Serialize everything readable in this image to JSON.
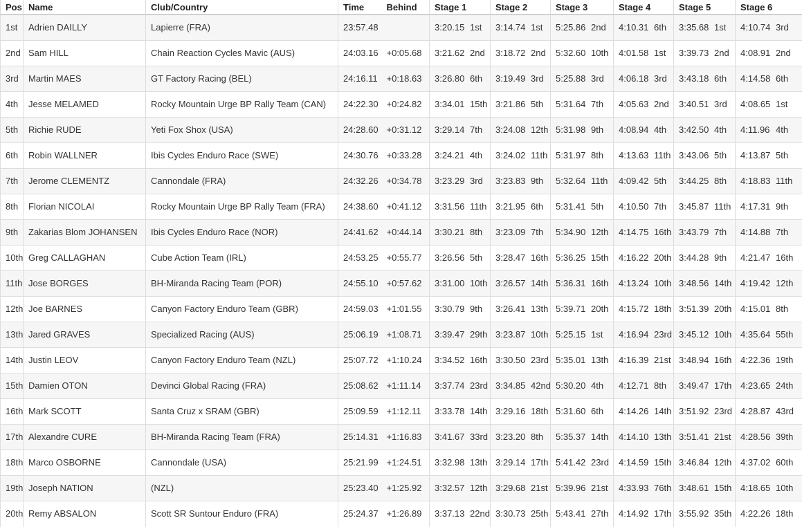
{
  "colors": {
    "text": "#333333",
    "header_text": "#222222",
    "border": "#dddddd",
    "header_border": "#d0d0d0",
    "stripe": "#f6f6f6"
  },
  "table": {
    "columns": [
      "Pos",
      "Name",
      "Club/Country",
      "Time",
      "Behind",
      "Stage 1",
      "Stage 2",
      "Stage 3",
      "Stage 4",
      "Stage 5",
      "Stage 6"
    ],
    "rows": [
      {
        "pos": "1st",
        "name": "Adrien DAILLY",
        "club": "Lapierre (FRA)",
        "time": "23:57.48",
        "behind": "",
        "stages": [
          [
            "3:20.15",
            "1st"
          ],
          [
            "3:14.74",
            "1st"
          ],
          [
            "5:25.86",
            "2nd"
          ],
          [
            "4:10.31",
            "6th"
          ],
          [
            "3:35.68",
            "1st"
          ],
          [
            "4:10.74",
            "3rd"
          ]
        ]
      },
      {
        "pos": "2nd",
        "name": "Sam HILL",
        "club": "Chain Reaction Cycles Mavic (AUS)",
        "time": "24:03.16",
        "behind": "+0:05.68",
        "stages": [
          [
            "3:21.62",
            "2nd"
          ],
          [
            "3:18.72",
            "2nd"
          ],
          [
            "5:32.60",
            "10th"
          ],
          [
            "4:01.58",
            "1st"
          ],
          [
            "3:39.73",
            "2nd"
          ],
          [
            "4:08.91",
            "2nd"
          ]
        ]
      },
      {
        "pos": "3rd",
        "name": "Martin MAES",
        "club": "GT Factory Racing (BEL)",
        "time": "24:16.11",
        "behind": "+0:18.63",
        "stages": [
          [
            "3:26.80",
            "6th"
          ],
          [
            "3:19.49",
            "3rd"
          ],
          [
            "5:25.88",
            "3rd"
          ],
          [
            "4:06.18",
            "3rd"
          ],
          [
            "3:43.18",
            "6th"
          ],
          [
            "4:14.58",
            "6th"
          ]
        ]
      },
      {
        "pos": "4th",
        "name": "Jesse MELAMED",
        "club": "Rocky Mountain Urge BP Rally Team (CAN)",
        "time": "24:22.30",
        "behind": "+0:24.82",
        "stages": [
          [
            "3:34.01",
            "15th"
          ],
          [
            "3:21.86",
            "5th"
          ],
          [
            "5:31.64",
            "7th"
          ],
          [
            "4:05.63",
            "2nd"
          ],
          [
            "3:40.51",
            "3rd"
          ],
          [
            "4:08.65",
            "1st"
          ]
        ]
      },
      {
        "pos": "5th",
        "name": "Richie RUDE",
        "club": "Yeti Fox Shox (USA)",
        "time": "24:28.60",
        "behind": "+0:31.12",
        "stages": [
          [
            "3:29.14",
            "7th"
          ],
          [
            "3:24.08",
            "12th"
          ],
          [
            "5:31.98",
            "9th"
          ],
          [
            "4:08.94",
            "4th"
          ],
          [
            "3:42.50",
            "4th"
          ],
          [
            "4:11.96",
            "4th"
          ]
        ]
      },
      {
        "pos": "6th",
        "name": "Robin WALLNER",
        "club": "Ibis Cycles Enduro Race (SWE)",
        "time": "24:30.76",
        "behind": "+0:33.28",
        "stages": [
          [
            "3:24.21",
            "4th"
          ],
          [
            "3:24.02",
            "11th"
          ],
          [
            "5:31.97",
            "8th"
          ],
          [
            "4:13.63",
            "11th"
          ],
          [
            "3:43.06",
            "5th"
          ],
          [
            "4:13.87",
            "5th"
          ]
        ]
      },
      {
        "pos": "7th",
        "name": "Jerome CLEMENTZ",
        "club": "Cannondale (FRA)",
        "time": "24:32.26",
        "behind": "+0:34.78",
        "stages": [
          [
            "3:23.29",
            "3rd"
          ],
          [
            "3:23.83",
            "9th"
          ],
          [
            "5:32.64",
            "11th"
          ],
          [
            "4:09.42",
            "5th"
          ],
          [
            "3:44.25",
            "8th"
          ],
          [
            "4:18.83",
            "11th"
          ]
        ]
      },
      {
        "pos": "8th",
        "name": "Florian NICOLAI",
        "club": "Rocky Mountain Urge BP Rally Team (FRA)",
        "time": "24:38.60",
        "behind": "+0:41.12",
        "stages": [
          [
            "3:31.56",
            "11th"
          ],
          [
            "3:21.95",
            "6th"
          ],
          [
            "5:31.41",
            "5th"
          ],
          [
            "4:10.50",
            "7th"
          ],
          [
            "3:45.87",
            "11th"
          ],
          [
            "4:17.31",
            "9th"
          ]
        ]
      },
      {
        "pos": "9th",
        "name": "Zakarias Blom JOHANSEN",
        "club": "Ibis Cycles Enduro Race (NOR)",
        "time": "24:41.62",
        "behind": "+0:44.14",
        "stages": [
          [
            "3:30.21",
            "8th"
          ],
          [
            "3:23.09",
            "7th"
          ],
          [
            "5:34.90",
            "12th"
          ],
          [
            "4:14.75",
            "16th"
          ],
          [
            "3:43.79",
            "7th"
          ],
          [
            "4:14.88",
            "7th"
          ]
        ]
      },
      {
        "pos": "10th",
        "name": "Greg CALLAGHAN",
        "club": "Cube Action Team (IRL)",
        "time": "24:53.25",
        "behind": "+0:55.77",
        "stages": [
          [
            "3:26.56",
            "5th"
          ],
          [
            "3:28.47",
            "16th"
          ],
          [
            "5:36.25",
            "15th"
          ],
          [
            "4:16.22",
            "20th"
          ],
          [
            "3:44.28",
            "9th"
          ],
          [
            "4:21.47",
            "16th"
          ]
        ]
      },
      {
        "pos": "11th",
        "name": "Jose BORGES",
        "club": "BH-Miranda Racing Team (POR)",
        "time": "24:55.10",
        "behind": "+0:57.62",
        "stages": [
          [
            "3:31.00",
            "10th"
          ],
          [
            "3:26.57",
            "14th"
          ],
          [
            "5:36.31",
            "16th"
          ],
          [
            "4:13.24",
            "10th"
          ],
          [
            "3:48.56",
            "14th"
          ],
          [
            "4:19.42",
            "12th"
          ]
        ]
      },
      {
        "pos": "12th",
        "name": "Joe BARNES",
        "club": "Canyon Factory Enduro Team (GBR)",
        "time": "24:59.03",
        "behind": "+1:01.55",
        "stages": [
          [
            "3:30.79",
            "9th"
          ],
          [
            "3:26.41",
            "13th"
          ],
          [
            "5:39.71",
            "20th"
          ],
          [
            "4:15.72",
            "18th"
          ],
          [
            "3:51.39",
            "20th"
          ],
          [
            "4:15.01",
            "8th"
          ]
        ]
      },
      {
        "pos": "13th",
        "name": "Jared GRAVES",
        "club": "Specialized Racing (AUS)",
        "time": "25:06.19",
        "behind": "+1:08.71",
        "stages": [
          [
            "3:39.47",
            "29th"
          ],
          [
            "3:23.87",
            "10th"
          ],
          [
            "5:25.15",
            "1st"
          ],
          [
            "4:16.94",
            "23rd"
          ],
          [
            "3:45.12",
            "10th"
          ],
          [
            "4:35.64",
            "55th"
          ]
        ]
      },
      {
        "pos": "14th",
        "name": "Justin LEOV",
        "club": "Canyon Factory Enduro Team (NZL)",
        "time": "25:07.72",
        "behind": "+1:10.24",
        "stages": [
          [
            "3:34.52",
            "16th"
          ],
          [
            "3:30.50",
            "23rd"
          ],
          [
            "5:35.01",
            "13th"
          ],
          [
            "4:16.39",
            "21st"
          ],
          [
            "3:48.94",
            "16th"
          ],
          [
            "4:22.36",
            "19th"
          ]
        ]
      },
      {
        "pos": "15th",
        "name": "Damien OTON",
        "club": "Devinci Global Racing (FRA)",
        "time": "25:08.62",
        "behind": "+1:11.14",
        "stages": [
          [
            "3:37.74",
            "23rd"
          ],
          [
            "3:34.85",
            "42nd"
          ],
          [
            "5:30.20",
            "4th"
          ],
          [
            "4:12.71",
            "8th"
          ],
          [
            "3:49.47",
            "17th"
          ],
          [
            "4:23.65",
            "24th"
          ]
        ]
      },
      {
        "pos": "16th",
        "name": "Mark SCOTT",
        "club": "Santa Cruz x SRAM (GBR)",
        "time": "25:09.59",
        "behind": "+1:12.11",
        "stages": [
          [
            "3:33.78",
            "14th"
          ],
          [
            "3:29.16",
            "18th"
          ],
          [
            "5:31.60",
            "6th"
          ],
          [
            "4:14.26",
            "14th"
          ],
          [
            "3:51.92",
            "23rd"
          ],
          [
            "4:28.87",
            "43rd"
          ]
        ]
      },
      {
        "pos": "17th",
        "name": "Alexandre CURE",
        "club": "BH-Miranda Racing Team (FRA)",
        "time": "25:14.31",
        "behind": "+1:16.83",
        "stages": [
          [
            "3:41.67",
            "33rd"
          ],
          [
            "3:23.20",
            "8th"
          ],
          [
            "5:35.37",
            "14th"
          ],
          [
            "4:14.10",
            "13th"
          ],
          [
            "3:51.41",
            "21st"
          ],
          [
            "4:28.56",
            "39th"
          ]
        ]
      },
      {
        "pos": "18th",
        "name": "Marco OSBORNE",
        "club": "Cannondale (USA)",
        "time": "25:21.99",
        "behind": "+1:24.51",
        "stages": [
          [
            "3:32.98",
            "13th"
          ],
          [
            "3:29.14",
            "17th"
          ],
          [
            "5:41.42",
            "23rd"
          ],
          [
            "4:14.59",
            "15th"
          ],
          [
            "3:46.84",
            "12th"
          ],
          [
            "4:37.02",
            "60th"
          ]
        ]
      },
      {
        "pos": "19th",
        "name": "Joseph NATION",
        "club": "(NZL)",
        "time": "25:23.40",
        "behind": "+1:25.92",
        "stages": [
          [
            "3:32.57",
            "12th"
          ],
          [
            "3:29.68",
            "21st"
          ],
          [
            "5:39.96",
            "21st"
          ],
          [
            "4:33.93",
            "76th"
          ],
          [
            "3:48.61",
            "15th"
          ],
          [
            "4:18.65",
            "10th"
          ]
        ]
      },
      {
        "pos": "20th",
        "name": "Remy ABSALON",
        "club": "Scott SR Suntour Enduro (FRA)",
        "time": "25:24.37",
        "behind": "+1:26.89",
        "stages": [
          [
            "3:37.13",
            "22nd"
          ],
          [
            "3:30.73",
            "25th"
          ],
          [
            "5:43.41",
            "27th"
          ],
          [
            "4:14.92",
            "17th"
          ],
          [
            "3:55.92",
            "35th"
          ],
          [
            "4:22.26",
            "18th"
          ]
        ]
      }
    ]
  }
}
